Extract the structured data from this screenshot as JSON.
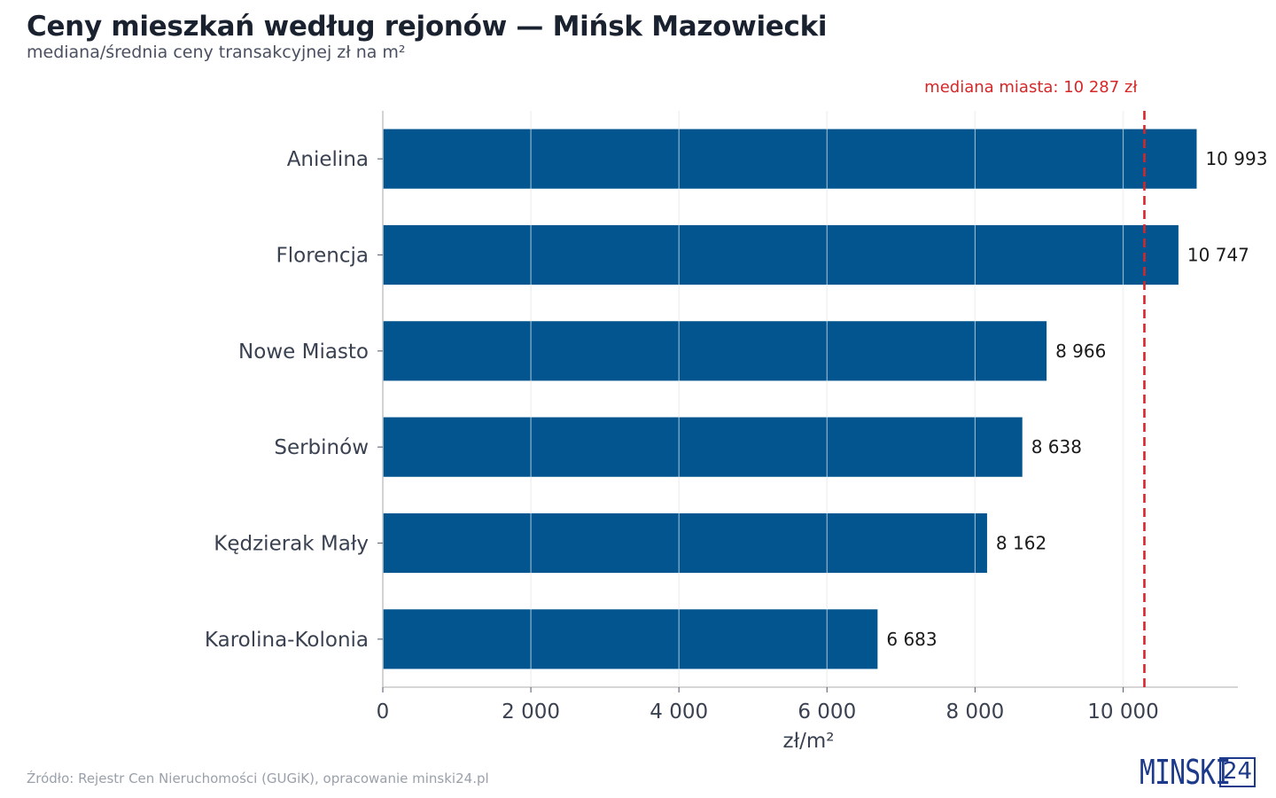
{
  "header": {
    "title": "Ceny mieszkań według rejonów — Mińsk Mazowiecki",
    "subtitle": "mediana/średnia ceny transakcyjnej zł na m²"
  },
  "footer": {
    "source": "Źródło: Rejestr Cen Nieruchomości (GUGiK), opracowanie minski24.pl",
    "logo_word": "MINSKI",
    "logo_number": "24"
  },
  "colors": {
    "bar": "#02558f",
    "median_line": "#d62728",
    "grid": "#e6e6e6",
    "axis": "#c8c8c8",
    "tick_text": "#3a4150",
    "label_text": "#1a1a1a"
  },
  "chart_data": {
    "type": "bar",
    "orientation": "horizontal",
    "title": "Ceny mieszkań według rejonów — Mińsk Mazowiecki",
    "subtitle": "mediana/średnia ceny transakcyjnej zł na m²",
    "xlabel": "zł/m²",
    "ylabel": "",
    "categories": [
      "Anielina",
      "Florencja",
      "Nowe Miasto",
      "Serbinów",
      "Kędzierak Mały",
      "Karolina-Kolonia"
    ],
    "values": [
      10993,
      10747,
      8966,
      8638,
      8162,
      6683
    ],
    "value_labels": [
      "10 993",
      "10 747",
      "8 966",
      "8 638",
      "8 162",
      "6 683"
    ],
    "xlim": [
      0,
      11550
    ],
    "xticks": [
      0,
      2000,
      4000,
      6000,
      8000,
      10000
    ],
    "xtick_labels": [
      "0",
      "2 000",
      "4 000",
      "6 000",
      "8 000",
      "10 000"
    ],
    "grid": true,
    "reference_line": {
      "value": 10287,
      "label": "mediana miasta: 10 287 zł",
      "style": "dashed"
    }
  }
}
